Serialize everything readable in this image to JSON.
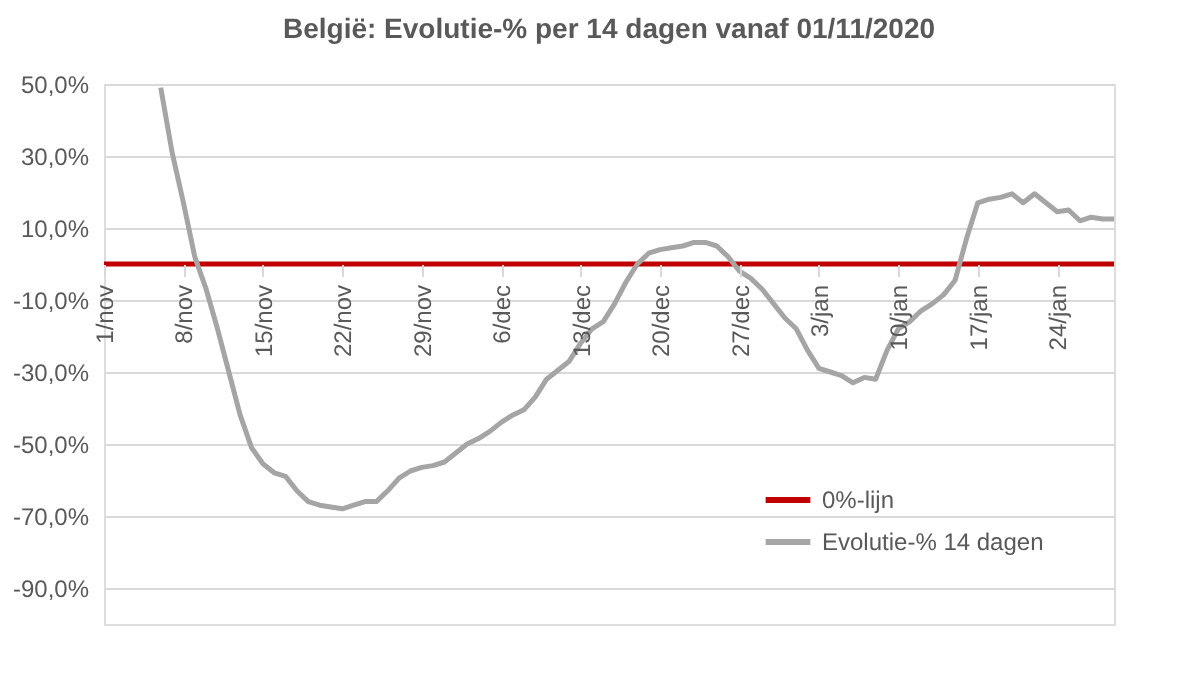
{
  "chart_data": {
    "type": "line",
    "title": "België: Evolutie-% per 14 dagen vanaf 01/11/2020",
    "categories": [
      "1/nov",
      null,
      null,
      null,
      null,
      null,
      null,
      "8/nov",
      null,
      null,
      null,
      null,
      null,
      null,
      "15/nov",
      null,
      null,
      null,
      null,
      null,
      null,
      "22/nov",
      null,
      null,
      null,
      null,
      null,
      null,
      "29/nov",
      null,
      null,
      null,
      null,
      null,
      null,
      "6/dec",
      null,
      null,
      null,
      null,
      null,
      null,
      "13/dec",
      null,
      null,
      null,
      null,
      null,
      null,
      "20/dec",
      null,
      null,
      null,
      null,
      null,
      null,
      "27/dec",
      null,
      null,
      null,
      null,
      null,
      null,
      "3/jan",
      null,
      null,
      null,
      null,
      null,
      null,
      "10/jan",
      null,
      null,
      null,
      null,
      null,
      null,
      "17/jan",
      null,
      null,
      null,
      null,
      null,
      null,
      "24/jan",
      null,
      null,
      null,
      null,
      null
    ],
    "series": [
      {
        "name": "0%-lijn",
        "color": "#c00000",
        "values": [
          0,
          0,
          0,
          0,
          0,
          0,
          0,
          0,
          0,
          0,
          0,
          0,
          0,
          0,
          0,
          0,
          0,
          0,
          0,
          0,
          0,
          0,
          0,
          0,
          0,
          0,
          0,
          0,
          0,
          0,
          0,
          0,
          0,
          0,
          0,
          0,
          0,
          0,
          0,
          0,
          0,
          0,
          0,
          0,
          0,
          0,
          0,
          0,
          0,
          0,
          0,
          0,
          0,
          0,
          0,
          0,
          0,
          0,
          0,
          0,
          0,
          0,
          0,
          0,
          0,
          0,
          0,
          0,
          0,
          0,
          0,
          0,
          0,
          0,
          0,
          0,
          0,
          0,
          0,
          0,
          0,
          0,
          0,
          0,
          0,
          0,
          0,
          0,
          0,
          0
        ]
      },
      {
        "name": "Evolutie-% 14 dagen",
        "color": "#a5a5a5",
        "values": [
          null,
          null,
          null,
          null,
          null,
          49,
          31,
          17,
          2,
          -7,
          -18,
          -30,
          -42,
          -51,
          -55.5,
          -58,
          -59,
          -63,
          -66,
          -67,
          -67.5,
          -68,
          -67,
          -66,
          -66,
          -63,
          -59.5,
          -57.5,
          -56.5,
          -56,
          -55,
          -52.5,
          -50,
          -48.5,
          -46.5,
          -44,
          -42,
          -40.5,
          -37,
          -32,
          -29.5,
          -27,
          -22,
          -18,
          -16,
          -11,
          -5,
          0,
          3,
          4,
          4.5,
          5,
          6,
          6,
          5,
          2,
          -2,
          -4,
          -7,
          -11,
          -15,
          -18,
          -24,
          -29,
          -30,
          -31,
          -33,
          -31.5,
          -32,
          -24,
          -18,
          -16,
          -13,
          -11,
          -8.5,
          -4.5,
          7,
          17,
          18,
          18.5,
          19.5,
          17,
          19.5,
          17,
          14.5,
          15,
          12,
          13,
          12.5,
          12.5
        ]
      }
    ],
    "ylim": [
      -100,
      50
    ],
    "yticks": [
      {
        "value": -90,
        "label": "-90,0%"
      },
      {
        "value": -70,
        "label": "-70,0%"
      },
      {
        "value": -50,
        "label": "-50,0%"
      },
      {
        "value": -30,
        "label": "-30,0%"
      },
      {
        "value": -10,
        "label": "-10,0%"
      },
      {
        "value": 10,
        "label": "10,0%"
      },
      {
        "value": 30,
        "label": "30,0%"
      },
      {
        "value": 50,
        "label": "50,0%"
      }
    ],
    "grid": "y",
    "legend": "bottom right",
    "marker": "none",
    "line_style": "solid"
  }
}
